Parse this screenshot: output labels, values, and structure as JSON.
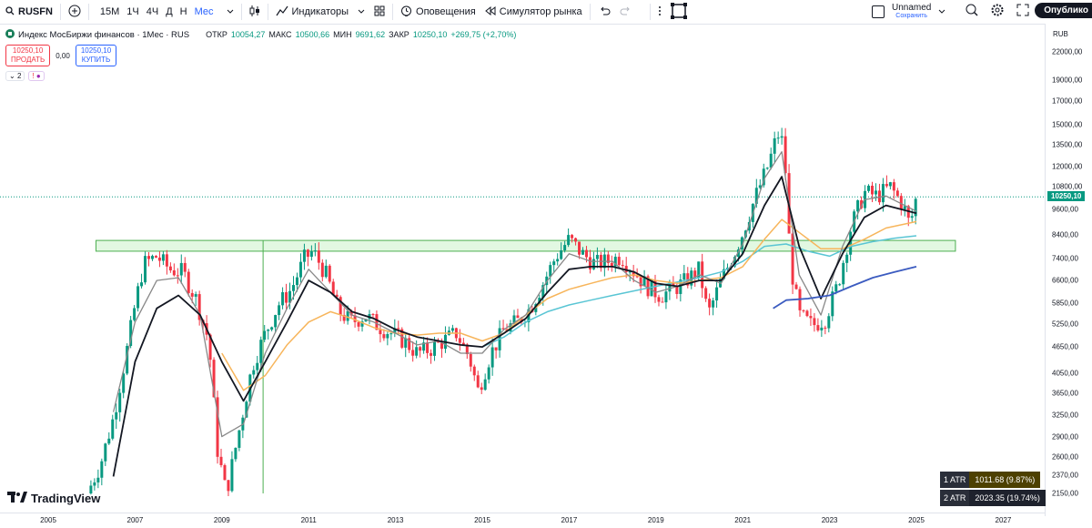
{
  "toolbar": {
    "symbol": "RUSFN",
    "intervals": [
      "15М",
      "1Ч",
      "4Ч",
      "Д",
      "Н",
      "Мес"
    ],
    "active_interval": "Мес",
    "indicators_label": "Индикаторы",
    "alerts_label": "Оповещения",
    "replay_label": "Симулятор рынка",
    "layout_name": "Unnamed",
    "layout_status": "Сохранить",
    "publish_label": "Опублико"
  },
  "legend": {
    "title": "Индекс МосБиржи финансов · 1Мес · RUS",
    "open_label": "ОТКР",
    "open": "10054,27",
    "high_label": "МАКС",
    "high": "10500,66",
    "low_label": "МИН",
    "low": "9691,62",
    "close_label": "ЗАКР",
    "close": "10250,10",
    "change": "+269,75 (+2,70%)"
  },
  "trade": {
    "sell_price": "10250,10",
    "sell_label": "ПРОДАТЬ",
    "spread": "0,00",
    "buy_price": "10250,10",
    "buy_label": "КУПИТЬ"
  },
  "indicators_row": {
    "count": "2"
  },
  "price_scale": {
    "currency": "RUB",
    "current_price": "10250,10",
    "ticks": [
      {
        "label": "22000,00",
        "v": 22000
      },
      {
        "label": "19000,00",
        "v": 19000
      },
      {
        "label": "17000,00",
        "v": 17000
      },
      {
        "label": "15000,00",
        "v": 15000
      },
      {
        "label": "13500,00",
        "v": 13500
      },
      {
        "label": "12000,00",
        "v": 12000
      },
      {
        "label": "10800,00",
        "v": 10800
      },
      {
        "label": "9600,00",
        "v": 9600
      },
      {
        "label": "8400,00",
        "v": 8400
      },
      {
        "label": "7400,00",
        "v": 7400
      },
      {
        "label": "6600,00",
        "v": 6600
      },
      {
        "label": "5850,00",
        "v": 5850
      },
      {
        "label": "5250,00",
        "v": 5250
      },
      {
        "label": "4650,00",
        "v": 4650
      },
      {
        "label": "4050,00",
        "v": 4050
      },
      {
        "label": "3650,00",
        "v": 3650
      },
      {
        "label": "3250,00",
        "v": 3250
      },
      {
        "label": "2900,00",
        "v": 2900
      },
      {
        "label": "2600,00",
        "v": 2600
      },
      {
        "label": "2370,00",
        "v": 2370
      },
      {
        "label": "2150,00",
        "v": 2150
      }
    ]
  },
  "time_axis": {
    "ticks": [
      "2005",
      "2007",
      "2009",
      "2011",
      "2013",
      "2015",
      "2017",
      "2019",
      "2021",
      "2023",
      "2025",
      "2027"
    ]
  },
  "atr": [
    {
      "label": "1 ATR",
      "value": "1011.68 (9.87%)"
    },
    {
      "label": "2 ATR",
      "value": "2023.35 (19.74%)"
    }
  ],
  "branding": {
    "logo_text": "TradingView"
  },
  "chart_data": {
    "type": "candlestick",
    "scale": "log",
    "ylim": [
      2100,
      23000
    ],
    "xlim": [
      2004.5,
      2027.8
    ],
    "zone": {
      "from_year": 2006.1,
      "to_year": 2025.9,
      "low": 7700,
      "high": 8150
    },
    "colors": {
      "up": "#089981",
      "down": "#f23645",
      "zone": "#d6f5d6",
      "ma_fast": "#131722",
      "ma_grey": "#888888",
      "ma_orange": "#f7b55b",
      "ma_cyan": "#59c5d4",
      "ma_blue": "#3b5bc0"
    },
    "path": [
      [
        2005.9,
        2150
      ],
      [
        2006.2,
        2500
      ],
      [
        2006.5,
        3200
      ],
      [
        2006.8,
        4500
      ],
      [
        2007.0,
        5800
      ],
      [
        2007.2,
        7200
      ],
      [
        2007.5,
        7500
      ],
      [
        2007.8,
        7000
      ],
      [
        2008.1,
        6900
      ],
      [
        2008.4,
        6000
      ],
      [
        2008.7,
        4800
      ],
      [
        2008.9,
        2700
      ],
      [
        2009.1,
        2150
      ],
      [
        2009.4,
        3000
      ],
      [
        2009.7,
        4200
      ],
      [
        2010.0,
        5000
      ],
      [
        2010.3,
        5800
      ],
      [
        2010.6,
        6300
      ],
      [
        2010.9,
        7400
      ],
      [
        2011.1,
        7700
      ],
      [
        2011.4,
        6800
      ],
      [
        2011.7,
        5600
      ],
      [
        2012.0,
        5300
      ],
      [
        2012.3,
        5500
      ],
      [
        2012.6,
        5200
      ],
      [
        2012.9,
        5000
      ],
      [
        2013.2,
        4800
      ],
      [
        2013.5,
        4500
      ],
      [
        2013.8,
        4600
      ],
      [
        2014.1,
        4800
      ],
      [
        2014.4,
        5000
      ],
      [
        2014.7,
        4400
      ],
      [
        2014.9,
        3700
      ],
      [
        2015.2,
        4500
      ],
      [
        2015.5,
        5100
      ],
      [
        2015.8,
        5300
      ],
      [
        2016.1,
        5700
      ],
      [
        2016.4,
        6500
      ],
      [
        2016.7,
        7500
      ],
      [
        2017.0,
        8200
      ],
      [
        2017.3,
        7600
      ],
      [
        2017.6,
        7200
      ],
      [
        2017.9,
        7300
      ],
      [
        2018.2,
        7500
      ],
      [
        2018.5,
        6900
      ],
      [
        2018.8,
        6400
      ],
      [
        2019.1,
        6100
      ],
      [
        2019.4,
        6300
      ],
      [
        2019.7,
        6600
      ],
      [
        2020.0,
        7000
      ],
      [
        2020.2,
        5500
      ],
      [
        2020.5,
        6600
      ],
      [
        2020.8,
        7600
      ],
      [
        2021.0,
        8500
      ],
      [
        2021.3,
        10300
      ],
      [
        2021.6,
        12200
      ],
      [
        2021.8,
        14300
      ],
      [
        2021.95,
        13500
      ],
      [
        2022.1,
        7200
      ],
      [
        2022.3,
        5500
      ],
      [
        2022.6,
        5200
      ],
      [
        2022.9,
        5400
      ],
      [
        2023.2,
        6500
      ],
      [
        2023.5,
        8800
      ],
      [
        2023.8,
        10500
      ],
      [
        2024.1,
        10300
      ],
      [
        2024.4,
        10800
      ],
      [
        2024.7,
        9800
      ],
      [
        2024.85,
        8800
      ],
      [
        2025.0,
        10250
      ]
    ],
    "ma_black": [
      [
        2006.5,
        2350
      ],
      [
        2007.0,
        4300
      ],
      [
        2007.5,
        5700
      ],
      [
        2008.0,
        6100
      ],
      [
        2008.5,
        5500
      ],
      [
        2009.0,
        4300
      ],
      [
        2009.5,
        3500
      ],
      [
        2010.0,
        4300
      ],
      [
        2010.5,
        5300
      ],
      [
        2011.0,
        6600
      ],
      [
        2011.5,
        6200
      ],
      [
        2012.0,
        5600
      ],
      [
        2012.5,
        5400
      ],
      [
        2013.0,
        5100
      ],
      [
        2013.5,
        4900
      ],
      [
        2014.0,
        4800
      ],
      [
        2014.5,
        4700
      ],
      [
        2015.0,
        4650
      ],
      [
        2015.5,
        5000
      ],
      [
        2016.0,
        5400
      ],
      [
        2016.5,
        6200
      ],
      [
        2017.0,
        7000
      ],
      [
        2017.5,
        7100
      ],
      [
        2018.0,
        7100
      ],
      [
        2018.5,
        6900
      ],
      [
        2019.0,
        6500
      ],
      [
        2019.5,
        6400
      ],
      [
        2020.0,
        6600
      ],
      [
        2020.5,
        6600
      ],
      [
        2021.0,
        7600
      ],
      [
        2021.5,
        9800
      ],
      [
        2021.9,
        11400
      ],
      [
        2022.3,
        7900
      ],
      [
        2022.8,
        6000
      ],
      [
        2023.3,
        7600
      ],
      [
        2023.8,
        9200
      ],
      [
        2024.3,
        9800
      ],
      [
        2025.0,
        9400
      ]
    ],
    "ma_grey": [
      [
        2006.5,
        3300
      ],
      [
        2007.0,
        5300
      ],
      [
        2007.5,
        6600
      ],
      [
        2008.0,
        6700
      ],
      [
        2008.5,
        5500
      ],
      [
        2009.0,
        2900
      ],
      [
        2009.5,
        3100
      ],
      [
        2010.0,
        4500
      ],
      [
        2010.5,
        5700
      ],
      [
        2011.0,
        7000
      ],
      [
        2011.5,
        6200
      ],
      [
        2012.0,
        5500
      ],
      [
        2012.5,
        5300
      ],
      [
        2013.0,
        5000
      ],
      [
        2013.5,
        4700
      ],
      [
        2014.0,
        4800
      ],
      [
        2014.5,
        4500
      ],
      [
        2015.0,
        4500
      ],
      [
        2015.5,
        5100
      ],
      [
        2016.0,
        5500
      ],
      [
        2016.5,
        6600
      ],
      [
        2017.0,
        7600
      ],
      [
        2017.5,
        7300
      ],
      [
        2018.0,
        7300
      ],
      [
        2018.5,
        6600
      ],
      [
        2019.0,
        6200
      ],
      [
        2019.5,
        6400
      ],
      [
        2020.0,
        6800
      ],
      [
        2020.5,
        6500
      ],
      [
        2021.0,
        8000
      ],
      [
        2021.5,
        11300
      ],
      [
        2021.9,
        13000
      ],
      [
        2022.3,
        6800
      ],
      [
        2022.8,
        5500
      ],
      [
        2023.3,
        7900
      ],
      [
        2023.8,
        10100
      ],
      [
        2024.3,
        10300
      ],
      [
        2025.0,
        9500
      ]
    ],
    "ma_orange": [
      [
        2009.0,
        4500
      ],
      [
        2009.5,
        3700
      ],
      [
        2010.0,
        4000
      ],
      [
        2010.5,
        4700
      ],
      [
        2011.0,
        5300
      ],
      [
        2011.5,
        5600
      ],
      [
        2012.0,
        5400
      ],
      [
        2012.5,
        5150
      ],
      [
        2013.0,
        5000
      ],
      [
        2013.5,
        4950
      ],
      [
        2014.0,
        5000
      ],
      [
        2014.5,
        5000
      ],
      [
        2015.0,
        4800
      ],
      [
        2015.5,
        5000
      ],
      [
        2016.0,
        5500
      ],
      [
        2016.5,
        6000
      ],
      [
        2017.0,
        6300
      ],
      [
        2017.5,
        6500
      ],
      [
        2018.0,
        6700
      ],
      [
        2018.5,
        6800
      ],
      [
        2019.0,
        6600
      ],
      [
        2019.5,
        6500
      ],
      [
        2020.0,
        6600
      ],
      [
        2020.5,
        6700
      ],
      [
        2021.0,
        7100
      ],
      [
        2021.5,
        8200
      ],
      [
        2021.9,
        9100
      ],
      [
        2022.3,
        8500
      ],
      [
        2022.8,
        7800
      ],
      [
        2023.3,
        7800
      ],
      [
        2023.8,
        8200
      ],
      [
        2024.3,
        8700
      ],
      [
        2025.0,
        9000
      ]
    ],
    "ma_cyan": [
      [
        2015.0,
        4650
      ],
      [
        2015.5,
        4900
      ],
      [
        2016.0,
        5300
      ],
      [
        2016.5,
        5600
      ],
      [
        2017.0,
        5800
      ],
      [
        2017.5,
        5950
      ],
      [
        2018.0,
        6100
      ],
      [
        2018.5,
        6250
      ],
      [
        2019.0,
        6400
      ],
      [
        2019.5,
        6550
      ],
      [
        2020.0,
        6700
      ],
      [
        2020.5,
        6900
      ],
      [
        2021.0,
        7300
      ],
      [
        2021.5,
        7900
      ],
      [
        2022.0,
        8000
      ],
      [
        2022.5,
        7700
      ],
      [
        2023.0,
        7500
      ],
      [
        2023.5,
        7900
      ],
      [
        2024.0,
        8100
      ],
      [
        2024.5,
        8250
      ],
      [
        2025.0,
        8350
      ]
    ],
    "ma_blue": [
      [
        2021.7,
        5700
      ],
      [
        2022.0,
        5950
      ],
      [
        2022.5,
        6000
      ],
      [
        2023.0,
        6100
      ],
      [
        2023.5,
        6400
      ],
      [
        2024.0,
        6700
      ],
      [
        2024.5,
        6900
      ],
      [
        2025.0,
        7100
      ]
    ]
  }
}
